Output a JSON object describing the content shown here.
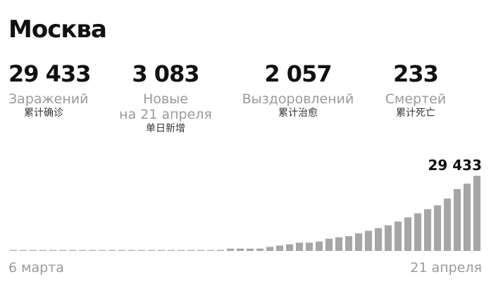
{
  "title": "Москва",
  "stats": [
    {
      "value": "29 433",
      "label": "Заражений",
      "label_cn": "累计确诊"
    },
    {
      "value": "3 083",
      "label": "Новые",
      "label2": "на 21 апреля",
      "label_cn": "单日新增"
    },
    {
      "value": "2 057",
      "label": "Выздоровлений",
      "label_cn": "累计治愈"
    },
    {
      "value": "233",
      "label": "Смертей",
      "label_cn": "累计死亡"
    }
  ],
  "chart_data": {
    "type": "bar",
    "title": "",
    "x_start_label": "6 марта",
    "x_end_label": "21 апреля",
    "last_value_label": "29 433",
    "bar_color": "#a6a6a6",
    "zero_color": "#b8b8b8",
    "values": [
      0,
      0,
      0,
      0,
      0,
      0,
      0,
      0,
      0,
      0,
      0,
      0,
      0,
      0,
      0,
      0,
      0,
      0,
      0,
      0,
      0,
      200,
      920,
      920,
      920,
      920,
      1560,
      2100,
      2580,
      3220,
      3220,
      3680,
      4780,
      5340,
      5800,
      6900,
      7900,
      8930,
      10030,
      11500,
      13150,
      14720,
      16380,
      17850,
      20520,
      24200,
      26350,
      29433
    ],
    "ylim": [
      0,
      29433
    ]
  }
}
